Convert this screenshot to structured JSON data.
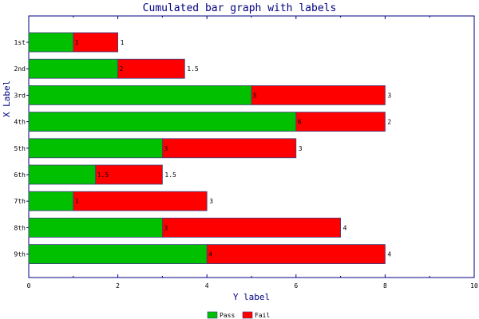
{
  "chart_data": {
    "type": "bar",
    "orientation": "horizontal",
    "stacked": true,
    "title": "Cumulated bar graph with labels",
    "xlabel": "Y label",
    "ylabel": "X Label",
    "categories": [
      "1st",
      "2nd",
      "3rd",
      "4th",
      "5th",
      "6th",
      "7th",
      "8th",
      "9th"
    ],
    "series": [
      {
        "name": "Pass",
        "color": "#00c000",
        "values": [
          1,
          2,
          5,
          6,
          3,
          1.5,
          1,
          3,
          4
        ],
        "labels": [
          "1",
          "2",
          "5",
          "6",
          "3",
          "1.5",
          "1",
          "3",
          "4"
        ]
      },
      {
        "name": "Fail",
        "color": "#ff0000",
        "values": [
          1,
          1.5,
          3,
          2,
          3,
          1.5,
          3,
          4,
          4
        ],
        "labels": [
          "1",
          "1.5",
          "3",
          "2",
          "3",
          "1.5",
          "3",
          "4",
          "4"
        ]
      }
    ],
    "value_axis": {
      "min": 0,
      "max": 10,
      "ticks": [
        0,
        2,
        4,
        6,
        8,
        10
      ],
      "tick_labels": [
        "0",
        "2",
        "4",
        "6",
        "8",
        "10"
      ]
    },
    "grid": false,
    "legend_position": "bottom-center",
    "axis_color": "#000080",
    "border_color": "#404080"
  }
}
